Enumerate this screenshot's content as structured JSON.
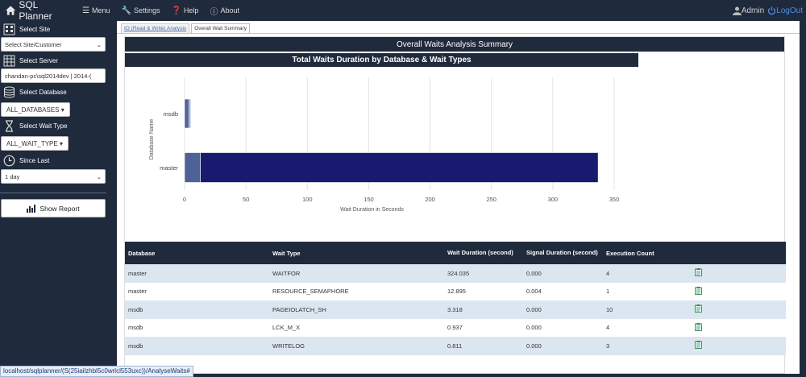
{
  "app": {
    "title": "SQL Planner"
  },
  "nav": {
    "menu": "Menu",
    "settings": "Settings",
    "help": "Help",
    "about": "About",
    "user": "Admin",
    "logout": "LogOut"
  },
  "sidebar": {
    "site_label": "Select Site",
    "site_value": "Select Site/Customer",
    "server_label": "Select Server",
    "server_value": "chandan-pc\\sql2014dev | 2014-(",
    "database_label": "Select Database",
    "database_value": "ALL_DATABASES",
    "wait_type_label": "Select Wait Type",
    "wait_type_value": "ALL_WAIT_TYPE",
    "since_label": "Since Last",
    "since_value": "1 day",
    "show_report": "Show Report"
  },
  "tabs": [
    {
      "label": "IO (Read & Write) Analysis"
    },
    {
      "label": "Overall Wait Summary"
    }
  ],
  "panel": {
    "title": "Overall Waits Analysis Summary"
  },
  "chart_data": {
    "type": "bar",
    "orientation": "horizontal",
    "stacked": true,
    "title": "Total Waits Duration by Database & Wait Types",
    "xlabel": "Wait Duration in Seconds",
    "ylabel": "Database Name",
    "xlim": [
      0,
      350
    ],
    "xticks": [
      "0",
      "50",
      "100",
      "150",
      "200",
      "250",
      "300",
      "350"
    ],
    "categories": [
      "msdb",
      "master"
    ],
    "series": [
      {
        "values": [
          3.318,
          12.895
        ],
        "color": "#4f6295"
      },
      {
        "values": [
          0.937,
          324.035
        ],
        "color": "#191970"
      },
      {
        "values": [
          0.811,
          0
        ],
        "color": "#8fa9d6"
      }
    ],
    "grid": true
  },
  "table": {
    "columns": [
      "Database",
      "Wait Type",
      "Wait Duration (second)",
      "Signal Duration (second)",
      "Execution Count"
    ],
    "rows": [
      [
        "master",
        "WAITFOR",
        "324.035",
        "0.000",
        "4"
      ],
      [
        "master",
        "RESOURCE_SEMAPHORE",
        "12.895",
        "0.004",
        "1"
      ],
      [
        "msdb",
        "PAGEIOLATCH_SH",
        "3.318",
        "0.000",
        "10"
      ],
      [
        "msdb",
        "LCK_M_X",
        "0.937",
        "0.000",
        "4"
      ],
      [
        "msdb",
        "WRITELOG",
        "0.811",
        "0.000",
        "3"
      ]
    ]
  },
  "status": {
    "url": "localhost/sqlplanner/(S(25iailzhbl5c0wrlcl553uxc))/AnalyseWaits#"
  }
}
